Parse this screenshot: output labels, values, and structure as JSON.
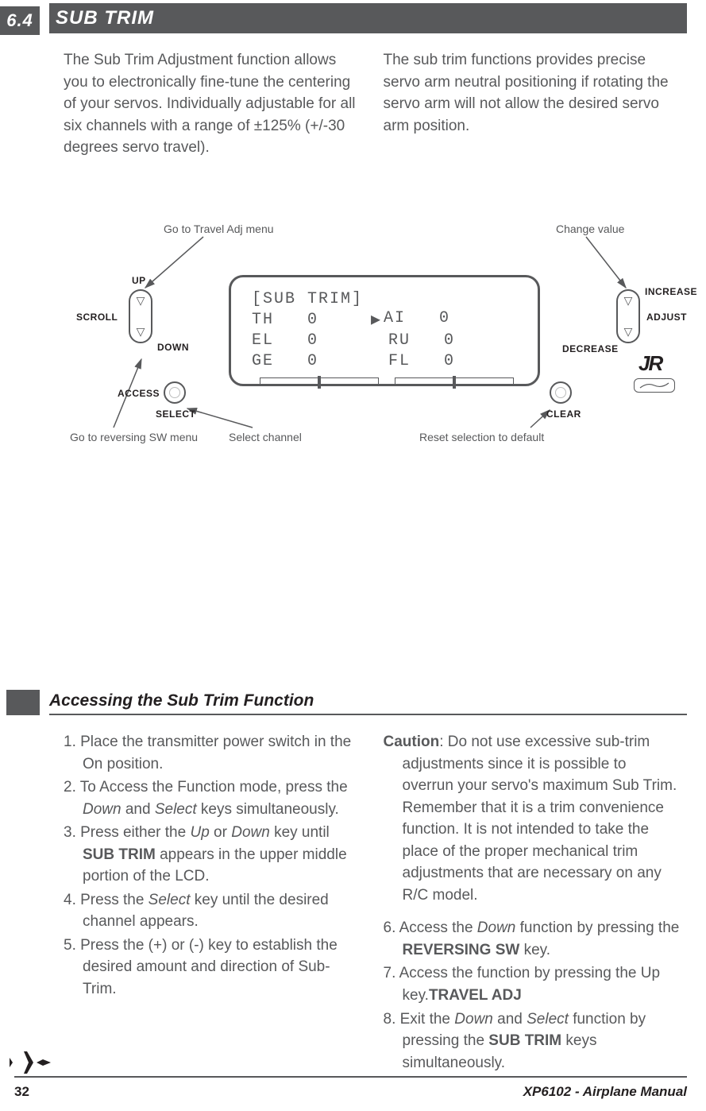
{
  "section": {
    "number": "6.4",
    "title": "SUB TRIM"
  },
  "intro": {
    "left": "The Sub Trim Adjustment function allows you to electronically fine-tune the centering of your servos. Individually adjustable for all six channels with a range of ±125% (+/-30 degrees servo travel).",
    "right": "The sub trim functions provides precise servo arm neutral positioning if rotating the servo arm will not allow the desired servo arm position."
  },
  "callouts": {
    "travel": "Go to Travel Adj menu",
    "change": "Change value",
    "reversing": "Go to reversing SW menu",
    "selectch": "Select channel",
    "reset": "Reset selection to default"
  },
  "lcd": {
    "title": "[SUB TRIM]",
    "rows": [
      {
        "l": "TH",
        "lv": "0",
        "r": "AI",
        "rv": "0",
        "selRight": true
      },
      {
        "l": "EL",
        "lv": "0",
        "r": "RU",
        "rv": "0",
        "selRight": false
      },
      {
        "l": "GE",
        "lv": "0",
        "r": "FL",
        "rv": "0",
        "selRight": false
      }
    ]
  },
  "labels": {
    "up": "UP",
    "down": "DOWN",
    "scroll": "SCROLL",
    "access": "ACCESS",
    "select": "SELECT",
    "increase": "INCREASE",
    "decrease": "DECREASE",
    "adjust": "ADJUST",
    "clear": "CLEAR"
  },
  "subsection": {
    "title": "Accessing the Sub Trim Function"
  },
  "steps_left": [
    {
      "t": "1. Place the transmitter power switch in the On position."
    },
    {
      "t": "2. To Access the Function mode, press the ",
      "i1": "Down",
      "m": " and ",
      "i2": "Select",
      "e": " keys simultaneously."
    },
    {
      "t": "3. Press either the ",
      "i1": "Up",
      "m": " or ",
      "i2": "Down",
      "e": " key until ",
      "b": "SUB TRIM",
      "e2": " appears in the upper middle portion of the LCD."
    },
    {
      "t": "4. Press the ",
      "i1": "Select",
      "e": " key until the desired channel appears."
    },
    {
      "t": "5. Press the (+) or (-) key to establish the desired amount and direction of Sub-Trim."
    }
  ],
  "steps_right": [
    {
      "b": "Caution",
      "t": ": Do not use excessive sub-trim adjustments since it is possible to overrun your servo's maximum Sub Trim. Remember that it is a trim convenience function. It is not intended to take the place of the proper mechanical trim adjustments that are necessary on any R/C model."
    },
    {
      "t": "6. Access the ",
      "b": "REVERSING SW",
      "e": " function by pressing the ",
      "i1": "Down",
      "e2": " key."
    },
    {
      "t": "7. Access the ",
      "b": "TRAVEL ADJ",
      "e": " function by pressing the Up key."
    },
    {
      "t": "8. Exit the ",
      "b": "SUB TRIM",
      "e": " function by pressing the ",
      "i1": "Down",
      "m": " and ",
      "i2": "Select",
      "e2": " keys simultaneously."
    }
  ],
  "footer": {
    "page": "32",
    "manual": "XP6102 - Airplane Manual"
  },
  "colors": {
    "ink": "#58595b",
    "dark": "#231f20"
  }
}
